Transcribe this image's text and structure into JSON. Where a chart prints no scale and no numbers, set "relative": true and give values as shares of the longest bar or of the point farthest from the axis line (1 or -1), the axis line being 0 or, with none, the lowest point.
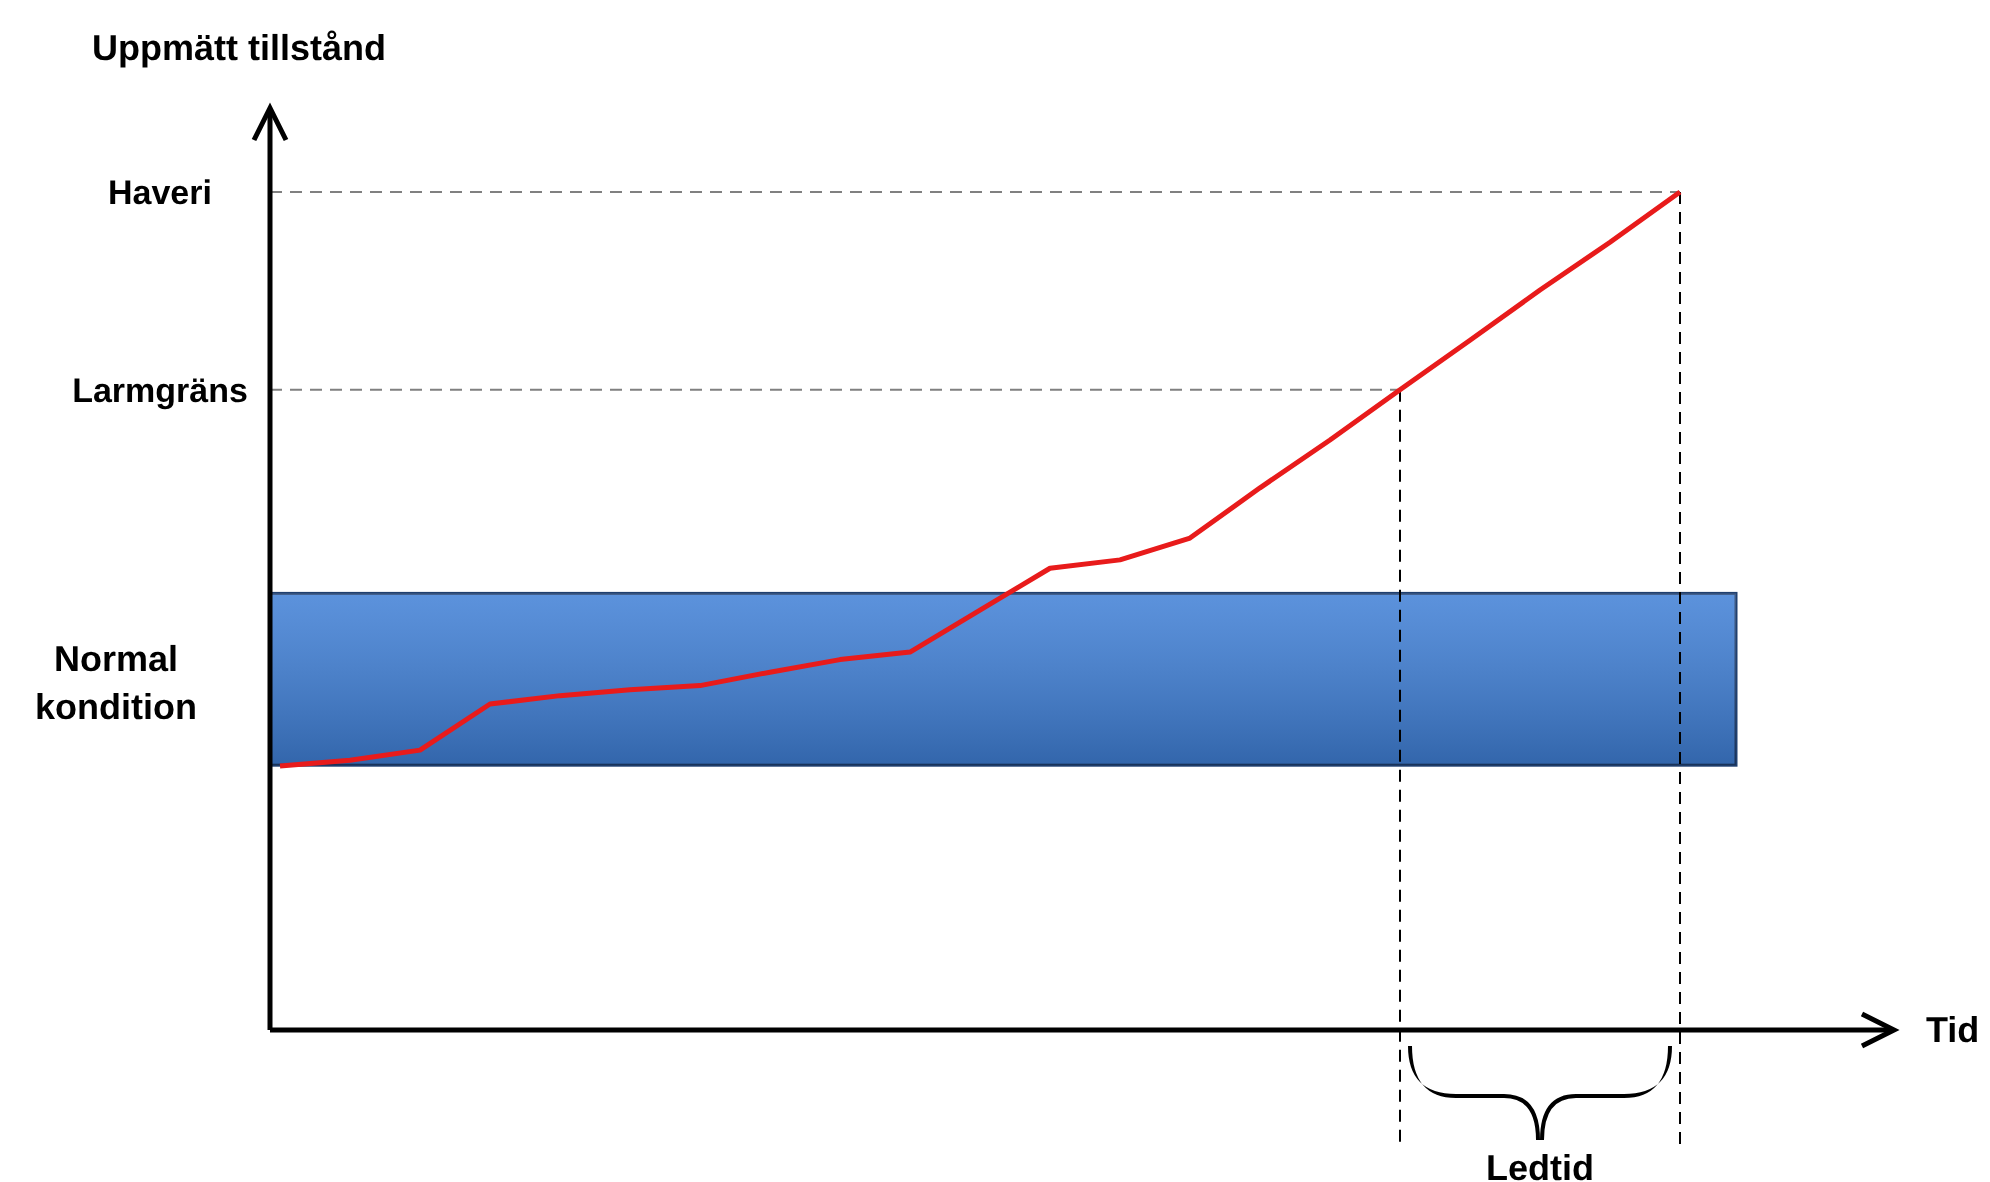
{
  "chart_data": {
    "type": "line",
    "relative": true,
    "ylabel": "Uppmätt tillstånd",
    "categories": [
      null,
      null,
      null,
      null,
      null,
      null,
      null,
      null,
      null,
      null,
      null,
      null,
      null,
      null,
      null,
      null,
      null,
      null,
      null,
      null,
      null
    ],
    "series": [
      {
        "color": "#e81b1b",
        "values": [
          0.315,
          0.322,
          0.334,
          0.389,
          0.399,
          0.406,
          0.411,
          0.427,
          0.442,
          0.451,
          0.501,
          0.551,
          0.561,
          0.587,
          0.647,
          0.704,
          0.764,
          0.823,
          0.883,
          0.94,
          1
        ]
      }
    ],
    "bands": [
      {
        "axis": "y",
        "from": 0.316,
        "to": 0.521,
        "label": "Normal kondition",
        "color": "#3f7fd6"
      }
    ],
    "ref_lines": [
      {
        "axis": "y",
        "value": 1,
        "label": "Haveri",
        "color": "#808080",
        "line_style": "dashed"
      },
      {
        "axis": "y",
        "value": 0.764,
        "label": "Larmgräns",
        "color": "#808080",
        "line_style": "dashed"
      }
    ],
    "annotations": [
      "Tid",
      "Ledtid"
    ]
  }
}
